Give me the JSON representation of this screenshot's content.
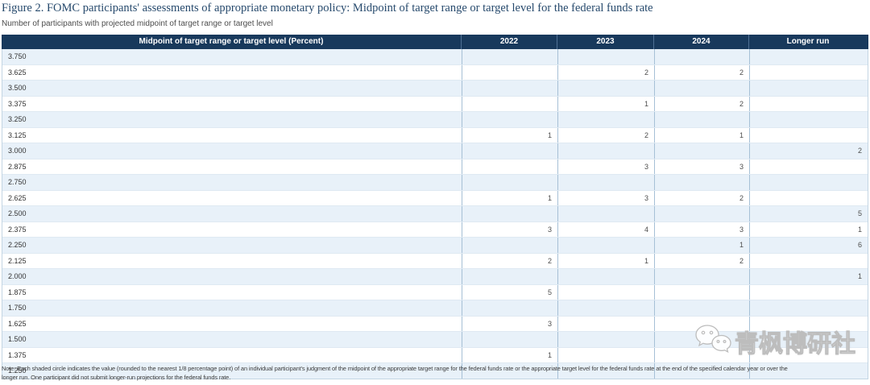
{
  "header": {
    "title": "Figure 2. FOMC participants' assessments of appropriate monetary policy: Midpoint of target range or target level for the federal funds rate",
    "subtitle": "Number of participants with projected midpoint of target range or target level"
  },
  "table": {
    "columns": [
      "Midpoint of target range or target level (Percent)",
      "2022",
      "2023",
      "2024",
      "Longer run"
    ],
    "rows": [
      {
        "label": "3.750",
        "values": [
          "",
          "",
          "",
          ""
        ]
      },
      {
        "label": "3.625",
        "values": [
          "",
          "2",
          "2",
          ""
        ]
      },
      {
        "label": "3.500",
        "values": [
          "",
          "",
          "",
          ""
        ]
      },
      {
        "label": "3.375",
        "values": [
          "",
          "1",
          "2",
          ""
        ]
      },
      {
        "label": "3.250",
        "values": [
          "",
          "",
          "",
          ""
        ]
      },
      {
        "label": "3.125",
        "values": [
          "1",
          "2",
          "1",
          ""
        ]
      },
      {
        "label": "3.000",
        "values": [
          "",
          "",
          "",
          "2"
        ]
      },
      {
        "label": "2.875",
        "values": [
          "",
          "3",
          "3",
          ""
        ]
      },
      {
        "label": "2.750",
        "values": [
          "",
          "",
          "",
          ""
        ]
      },
      {
        "label": "2.625",
        "values": [
          "1",
          "3",
          "2",
          ""
        ]
      },
      {
        "label": "2.500",
        "values": [
          "",
          "",
          "",
          "5"
        ]
      },
      {
        "label": "2.375",
        "values": [
          "3",
          "4",
          "3",
          "1"
        ]
      },
      {
        "label": "2.250",
        "values": [
          "",
          "",
          "1",
          "6"
        ]
      },
      {
        "label": "2.125",
        "values": [
          "2",
          "1",
          "2",
          ""
        ]
      },
      {
        "label": "2.000",
        "values": [
          "",
          "",
          "",
          "1"
        ]
      },
      {
        "label": "1.875",
        "values": [
          "5",
          "",
          "",
          ""
        ]
      },
      {
        "label": "1.750",
        "values": [
          "",
          "",
          "",
          ""
        ]
      },
      {
        "label": "1.625",
        "values": [
          "3",
          "",
          "",
          ""
        ]
      },
      {
        "label": "1.500",
        "values": [
          "",
          "",
          "",
          ""
        ]
      },
      {
        "label": "1.375",
        "values": [
          "1",
          "",
          "",
          ""
        ]
      },
      {
        "label": "1.250",
        "values": [
          "",
          "",
          "",
          ""
        ]
      }
    ]
  },
  "note": {
    "line1": "Note: Each shaded circle indicates the value (rounded to the nearest 1/8 percentage point) of an individual participant's judgment of the midpoint of the appropriate target range for the federal funds rate or the appropriate target level for the federal funds rate at the end of the specified calendar year or over the",
    "line2": "longer run. One participant did not submit longer-run projections for the federal funds rate."
  },
  "watermark": {
    "text": "青枫博研社",
    "icon": "wechat-icon"
  },
  "colors": {
    "header_bg": "#18395c",
    "header_text": "#ffffff",
    "shaded_row": "#e8f1f9",
    "plain_row": "#ffffff",
    "column_border": "#a6c0d6",
    "title_text": "#274a6d"
  },
  "chart_data": {
    "type": "table",
    "title": "Figure 2. FOMC participants' assessments of appropriate monetary policy: Midpoint of target range or target level for the federal funds rate",
    "subtitle": "Number of participants with projected midpoint of target range or target level",
    "categories": [
      "3.750",
      "3.625",
      "3.500",
      "3.375",
      "3.250",
      "3.125",
      "3.000",
      "2.875",
      "2.750",
      "2.625",
      "2.500",
      "2.375",
      "2.250",
      "2.125",
      "2.000",
      "1.875",
      "1.750",
      "1.625",
      "1.500",
      "1.375",
      "1.250"
    ],
    "series": [
      {
        "name": "2022",
        "values": [
          null,
          null,
          null,
          null,
          null,
          1,
          null,
          null,
          null,
          1,
          null,
          3,
          null,
          2,
          null,
          5,
          null,
          3,
          null,
          1,
          null
        ]
      },
      {
        "name": "2023",
        "values": [
          null,
          2,
          null,
          1,
          null,
          2,
          null,
          3,
          null,
          3,
          null,
          4,
          null,
          1,
          null,
          null,
          null,
          null,
          null,
          null,
          null
        ]
      },
      {
        "name": "2024",
        "values": [
          null,
          2,
          null,
          2,
          null,
          1,
          null,
          3,
          null,
          2,
          null,
          3,
          1,
          2,
          null,
          null,
          null,
          null,
          null,
          null,
          null
        ]
      },
      {
        "name": "Longer run",
        "values": [
          null,
          null,
          null,
          null,
          null,
          null,
          2,
          null,
          null,
          null,
          5,
          1,
          6,
          null,
          1,
          null,
          null,
          null,
          null,
          null,
          null
        ]
      }
    ]
  }
}
